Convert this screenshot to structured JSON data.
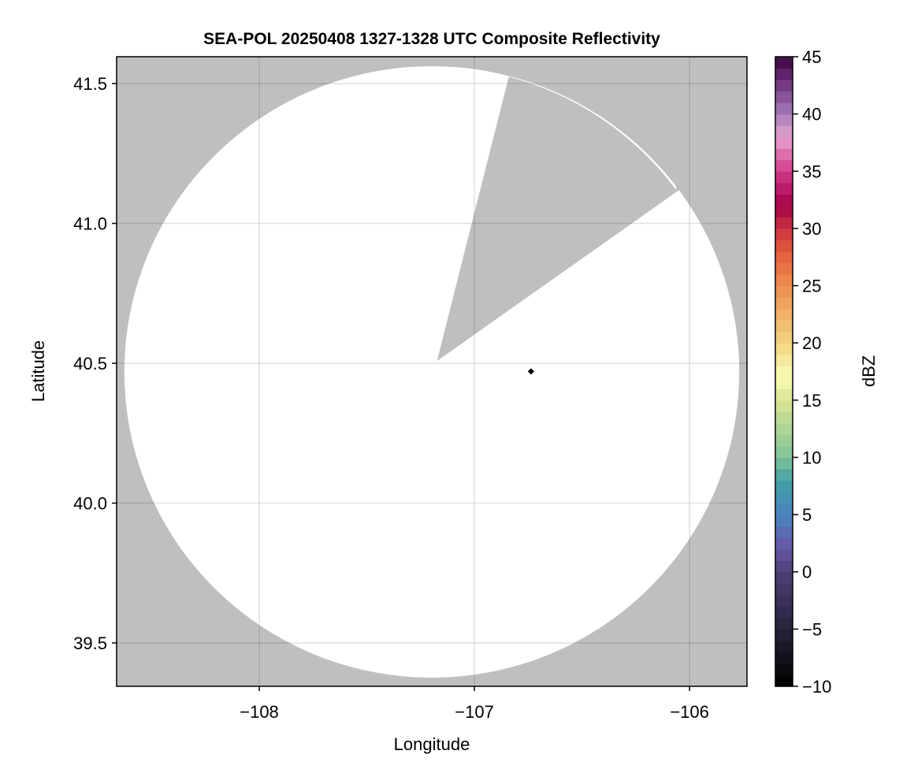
{
  "chart_data": {
    "type": "heatmap",
    "title": "SEA-POL 20250408 1327-1328 UTC Composite Reflectivity",
    "xlabel": "Longitude",
    "ylabel": "Latitude",
    "xlim": [
      -108.663,
      -105.733
    ],
    "ylim": [
      39.345,
      41.596
    ],
    "xticks": [
      -108,
      -107,
      -106
    ],
    "xtick_labels": [
      "−108",
      "−107",
      "−106"
    ],
    "yticks": [
      39.5,
      40.0,
      40.5,
      41.0,
      41.5
    ],
    "ytick_labels": [
      "39.5",
      "40.0",
      "40.5",
      "41.0",
      "41.5"
    ],
    "grid": true,
    "background_color": "#bfbfbf",
    "coverage_color": "#ffffff",
    "coverage": {
      "center_lon": -107.198,
      "center_lat": 40.469,
      "radius_lon_deg": 1.429,
      "radius_lat_deg": 1.093
    },
    "blocked_sector": {
      "apex": [
        -107.174,
        40.508
      ],
      "edge_start": [
        -106.84,
        41.525
      ],
      "edge_end": [
        -106.062,
        41.12
      ]
    },
    "marker": {
      "lon": -106.737,
      "lat": 40.471,
      "shape": "diamond",
      "color": "#000000"
    },
    "colorbar": {
      "label": "dBZ",
      "range": [
        -10,
        45
      ],
      "step": 1,
      "ticks": [
        -10,
        -5,
        0,
        5,
        10,
        15,
        20,
        25,
        30,
        35,
        40,
        45
      ],
      "tick_labels": [
        "−10",
        "−5",
        "0",
        "5",
        "10",
        "15",
        "20",
        "25",
        "30",
        "35",
        "40",
        "45"
      ],
      "color_stops": [
        [
          -10,
          "#000000"
        ],
        [
          -5,
          "#28223a"
        ],
        [
          0,
          "#4d3f78"
        ],
        [
          2,
          "#6a55a6"
        ],
        [
          5,
          "#4a85c0"
        ],
        [
          8,
          "#40a0a8"
        ],
        [
          10,
          "#7ec49a"
        ],
        [
          15,
          "#d9e592"
        ],
        [
          17,
          "#fbfbb8"
        ],
        [
          20,
          "#f1d57f"
        ],
        [
          25,
          "#ef8e4f"
        ],
        [
          28,
          "#e35c3a"
        ],
        [
          30,
          "#cc3340"
        ],
        [
          32,
          "#a3004a"
        ],
        [
          35,
          "#d23a8a"
        ],
        [
          38,
          "#e7a3d0"
        ],
        [
          40,
          "#a67cbc"
        ],
        [
          43,
          "#6d2e7b"
        ],
        [
          45,
          "#3a0540"
        ]
      ]
    }
  }
}
